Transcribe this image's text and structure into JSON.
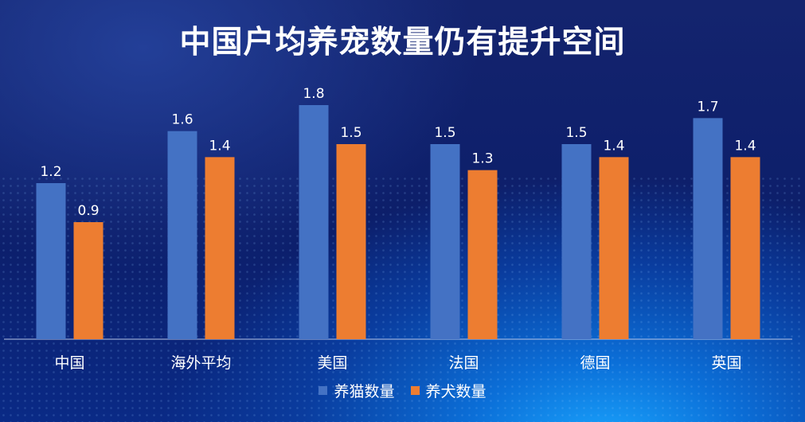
{
  "page": {
    "title": "中国户均养宠数量仍有提升空间"
  },
  "chart_data": {
    "type": "bar",
    "categories": [
      "中国",
      "海外平均",
      "美国",
      "法国",
      "德国",
      "英国"
    ],
    "series": [
      {
        "name": "养猫数量",
        "values": [
          1.2,
          1.6,
          1.8,
          1.5,
          1.5,
          1.7
        ],
        "color": "#4472C4"
      },
      {
        "name": "养犬数量",
        "values": [
          0.9,
          1.4,
          1.5,
          1.3,
          1.4,
          1.4
        ],
        "color": "#ED7D31"
      }
    ],
    "ylim": [
      0,
      1.8
    ],
    "data_labels": true,
    "grid": false,
    "legend": "bottom"
  }
}
